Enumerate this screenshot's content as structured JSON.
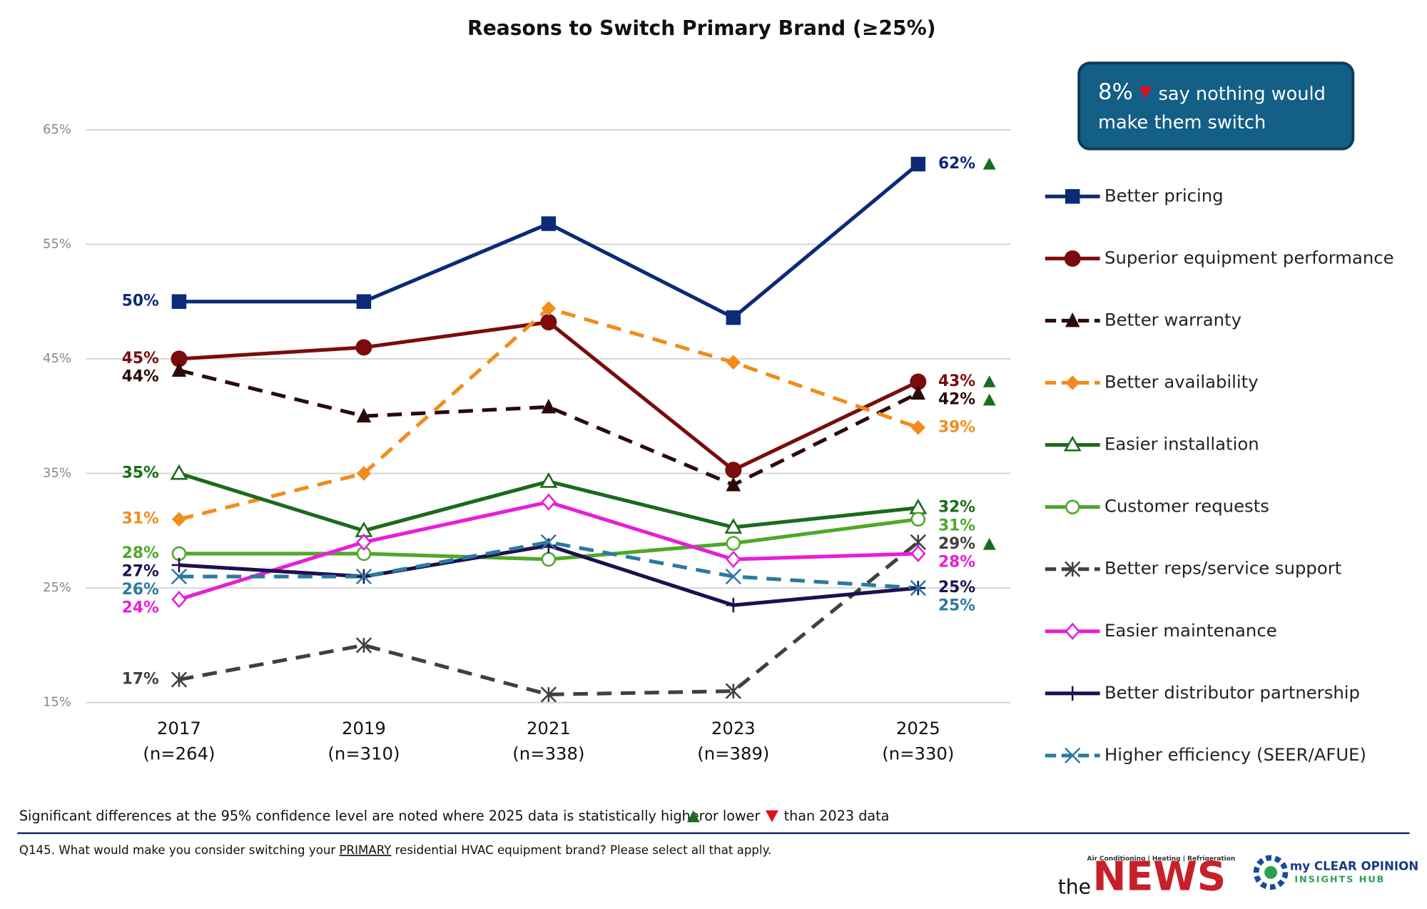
{
  "chart_data": {
    "type": "line",
    "title": "Reasons to Switch Primary Brand (≥25%)",
    "categories": [
      "2017",
      "2019",
      "2021",
      "2023",
      "2025"
    ],
    "category_notes": [
      "(n=264)",
      "(n=310)",
      "(n=338)",
      "(n=389)",
      "(n=330)"
    ],
    "ylim": [
      15,
      65
    ],
    "yticks": [
      {
        "value": 15,
        "label": "15%"
      },
      {
        "value": 25,
        "label": "25%"
      },
      {
        "value": 35,
        "label": "35%"
      },
      {
        "value": 45,
        "label": "45%"
      },
      {
        "value": 55,
        "label": "55%"
      },
      {
        "value": 65,
        "label": "65%"
      }
    ],
    "grid": true,
    "series": [
      {
        "name": "Better pricing",
        "color": "#0b2a78",
        "marker": "square",
        "dashed": false,
        "values": [
          50,
          50,
          56.8,
          48.6,
          62
        ],
        "value_labels": [
          "50%",
          null,
          null,
          null,
          "62%"
        ],
        "significance": "higher"
      },
      {
        "name": "Superior equipment performance",
        "color": "#7b0c0c",
        "marker": "circle",
        "dashed": false,
        "values": [
          45,
          46,
          48.2,
          35.3,
          43
        ],
        "value_labels": [
          "45%",
          null,
          null,
          null,
          "43%"
        ],
        "significance": "higher"
      },
      {
        "name": "Better warranty",
        "color": "#2a0a0a",
        "marker": "triangle",
        "dashed": true,
        "values": [
          44,
          40,
          40.8,
          34,
          42
        ],
        "value_labels": [
          "44%",
          null,
          null,
          null,
          "42%"
        ],
        "significance": "higher"
      },
      {
        "name": "Better availability",
        "color": "#f28c1a",
        "marker": "diamond",
        "dashed": true,
        "values": [
          31,
          35,
          49.4,
          44.7,
          39
        ],
        "value_labels": [
          "31%",
          null,
          null,
          null,
          "39%"
        ]
      },
      {
        "name": "Easier installation",
        "color": "#1a6b1a",
        "marker": "triangle-open",
        "dashed": false,
        "values": [
          35,
          30,
          34.3,
          30.3,
          32
        ],
        "value_labels": [
          "35%",
          null,
          null,
          null,
          "32%"
        ]
      },
      {
        "name": "Customer requests",
        "color": "#4ea82a",
        "marker": "circle-open",
        "dashed": false,
        "values": [
          28,
          28,
          27.5,
          28.9,
          31
        ],
        "value_labels": [
          "28%",
          null,
          null,
          null,
          "31%"
        ]
      },
      {
        "name": "Better reps/service support",
        "color": "#404040",
        "marker": "asterisk",
        "dashed": true,
        "values": [
          17,
          20,
          15.7,
          16,
          29
        ],
        "value_labels": [
          "17%",
          null,
          null,
          null,
          "29%"
        ],
        "significance": "higher"
      },
      {
        "name": "Easier maintenance",
        "color": "#e81ed8",
        "marker": "diamond-open",
        "dashed": false,
        "values": [
          24,
          29,
          32.5,
          27.5,
          28
        ],
        "value_labels": [
          "24%",
          null,
          null,
          null,
          "28%"
        ]
      },
      {
        "name": "Better distributor partnership",
        "color": "#1e0f50",
        "marker": "plus",
        "dashed": false,
        "values": [
          27,
          26,
          28.7,
          23.5,
          25
        ],
        "value_labels": [
          "27%",
          null,
          null,
          null,
          "25%"
        ]
      },
      {
        "name": "Higher efficiency (SEER/AFUE)",
        "color": "#2a7aa0",
        "marker": "x",
        "dashed": true,
        "values": [
          26,
          26,
          29,
          26,
          25
        ],
        "value_labels": [
          "26%",
          null,
          null,
          null,
          "25%"
        ]
      }
    ],
    "callout": {
      "value": "8%",
      "direction": "lower",
      "line1": "say nothing would",
      "line2": "make them switch"
    },
    "footnote": {
      "part1": "Significant differences at the 95% confidence level are noted where 2025 data is statistically higher",
      "part2": "or lower",
      "part3": "than 2023 data"
    },
    "question": {
      "before": "Q145. What would make you consider switching your",
      "underlined": "PRIMARY",
      "after": "residential HVAC equipment brand? Please select all that apply."
    },
    "branding": {
      "news_tagline": "Air Conditioning | Heating | Refrigeration",
      "news_the": "the",
      "news_name": "NEWS",
      "hub_line1": "my CLEAR OPINION",
      "hub_line2": "INSIGHTS HUB"
    }
  }
}
